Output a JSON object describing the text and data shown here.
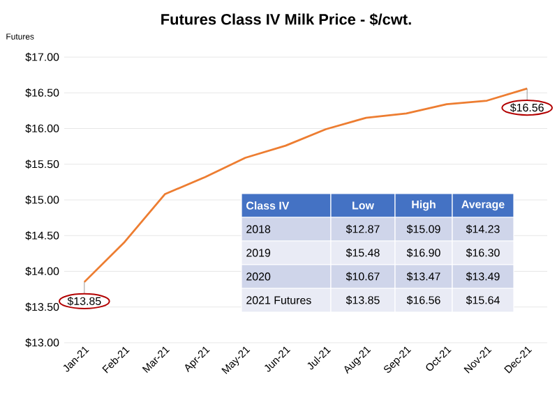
{
  "chart_data": {
    "type": "line",
    "title": "Futures Class IV Milk Price - $/cwt.",
    "categories": [
      "Jan-21",
      "Feb-21",
      "Mar-21",
      "Apr-21",
      "May-21",
      "Jun-21",
      "Jul-21",
      "Aug-21",
      "Sep-21",
      "Oct-21",
      "Nov-21",
      "Dec-21"
    ],
    "series": [
      {
        "color": "#ed7d31",
        "values": [
          13.85,
          14.41,
          15.08,
          15.32,
          15.59,
          15.76,
          15.99,
          16.15,
          16.21,
          16.34,
          16.39,
          16.56
        ],
        "value_labels": [
          "$13.85",
          null,
          null,
          null,
          null,
          null,
          null,
          null,
          null,
          null,
          null,
          "$16.56"
        ]
      }
    ],
    "ylim": [
      13,
      17
    ],
    "yticks": [
      {
        "value": 13,
        "label": "$13.00"
      },
      {
        "value": 13.5,
        "label": "$13.50"
      },
      {
        "value": 14,
        "label": "$14.00"
      },
      {
        "value": 14.5,
        "label": "$14.50"
      },
      {
        "value": 15,
        "label": "$15.00"
      },
      {
        "value": 15.5,
        "label": "$15.50"
      },
      {
        "value": 16,
        "label": "$16.00"
      },
      {
        "value": 16.5,
        "label": "$16.50"
      },
      {
        "value": 17,
        "label": "$17.00"
      }
    ],
    "grid": "y",
    "marker": "none",
    "line_style": "solid",
    "annotations": [
      "Futures",
      "Class IV",
      "Low",
      "High",
      "Average",
      "2018",
      "$12.87",
      "$15.09",
      "$14.23",
      "2019",
      "$15.48",
      "$16.90",
      "$16.30",
      "2020",
      "$10.67",
      "$13.47",
      "$13.49",
      "2021 Futures",
      "$13.85",
      "$16.56",
      "$15.64"
    ]
  }
}
